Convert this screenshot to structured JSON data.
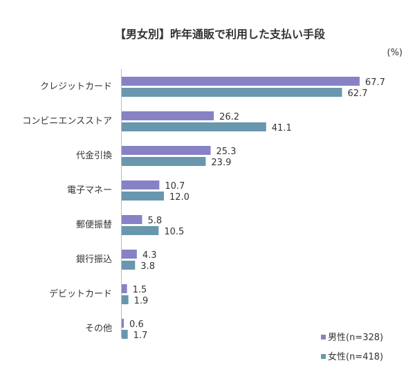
{
  "chart_data": {
    "type": "bar",
    "orientation": "horizontal",
    "title": "【男女別】昨年通販で利用した支払い手段",
    "unit_label": "(%)",
    "categories": [
      "クレジットカード",
      "コンビニエンスストア",
      "代金引換",
      "電子マネー",
      "郵便振替",
      "銀行振込",
      "デビットカード",
      "その他"
    ],
    "series": [
      {
        "name": "男性(n=328)",
        "color": "#8782c5",
        "values": [
          67.7,
          26.2,
          25.3,
          10.7,
          5.8,
          4.3,
          1.5,
          0.6
        ],
        "labels": [
          "67.7",
          "26.2",
          "25.3",
          "10.7",
          "5.8",
          "4.3",
          "1.5",
          "0.6"
        ]
      },
      {
        "name": "女性(n=418)",
        "color": "#6897ae",
        "values": [
          62.7,
          41.1,
          23.9,
          12.0,
          10.5,
          3.8,
          1.9,
          1.7
        ],
        "labels": [
          "62.7",
          "41.1",
          "23.9",
          "12.0",
          "10.5",
          "3.8",
          "1.9",
          "1.7"
        ]
      }
    ],
    "xlim": [
      0,
      80
    ],
    "grid": false,
    "legend_position": "bottom-right"
  }
}
